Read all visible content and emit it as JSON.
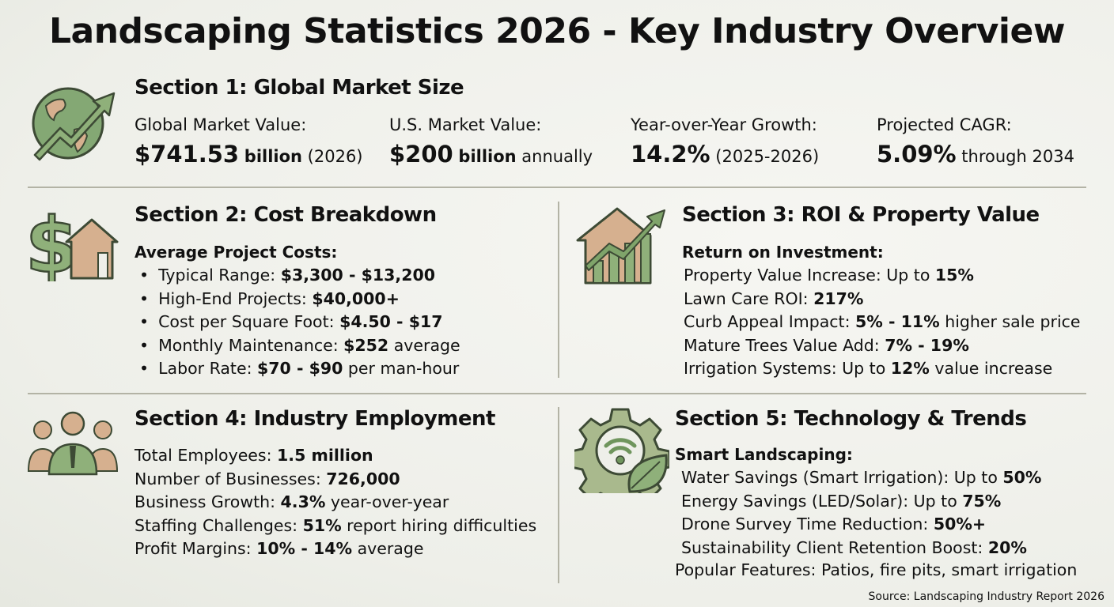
{
  "title": "Landscaping Statistics 2026 - Key Industry Overview",
  "colors": {
    "green": "#7fa46a",
    "tan": "#d6b08f",
    "outline": "#3d4a35",
    "divider": "#b3b3a5"
  },
  "section1": {
    "heading": "Section 1: Global Market Size",
    "icon": "globe-growth-arrow-icon",
    "stats": [
      {
        "label": "Global Market Value:",
        "value": "$741.53",
        "unit": "billion",
        "note": "(2026)"
      },
      {
        "label": "U.S. Market Value:",
        "value": "$200",
        "unit": "billion",
        "note": "annually"
      },
      {
        "label": "Year-over-Year Growth:",
        "value": "14.2%",
        "unit": "",
        "note": "(2025-2026)"
      },
      {
        "label": "Projected CAGR:",
        "value": "5.09%",
        "unit": "",
        "note": "through 2034"
      }
    ]
  },
  "section2": {
    "heading": "Section 2: Cost Breakdown",
    "icon": "dollar-house-icon",
    "subheading": "Average Project Costs:",
    "items": [
      {
        "label": "Typical Range: ",
        "bold": "$3,300 - $13,200",
        "rest": ""
      },
      {
        "label": "High-End Projects: ",
        "bold": "$40,000+",
        "rest": ""
      },
      {
        "label": "Cost per Square Foot: ",
        "bold": "$4.50 - $17",
        "rest": ""
      },
      {
        "label": "Monthly Maintenance: ",
        "bold": "$252",
        "rest": " average"
      },
      {
        "label": "Labor Rate: ",
        "bold": "$70 - $90",
        "rest": " per man-hour"
      }
    ]
  },
  "section3": {
    "heading": "Section 3: ROI & Property Value",
    "icon": "house-bar-chart-icon",
    "subheading": "Return on Investment:",
    "items": [
      {
        "label": "Property Value Increase: Up to ",
        "bold": "15%",
        "rest": ""
      },
      {
        "label": "Lawn Care ROI: ",
        "bold": "217%",
        "rest": ""
      },
      {
        "label": "Curb Appeal Impact: ",
        "bold": "5% - 11%",
        "rest": " higher sale price"
      },
      {
        "label": "Mature Trees Value Add: ",
        "bold": "7% - 19%",
        "rest": ""
      },
      {
        "label": "Irrigation Systems: Up to ",
        "bold": "12%",
        "rest": " value increase"
      }
    ]
  },
  "section4": {
    "heading": "Section 4: Industry Employment",
    "icon": "people-group-icon",
    "items": [
      {
        "label": "Total Employees: ",
        "bold": "1.5 million",
        "rest": ""
      },
      {
        "label": "Number of Businesses: ",
        "bold": "726,000",
        "rest": ""
      },
      {
        "label": "Business Growth: ",
        "bold": "4.3%",
        "rest": " year-over-year"
      },
      {
        "label": "Staffing Challenges: ",
        "bold": "51%",
        "rest": " report hiring difficulties"
      },
      {
        "label": "Profit Margins: ",
        "bold": "10% - 14%",
        "rest": " average"
      }
    ]
  },
  "section5": {
    "heading": "Section 5: Technology & Trends",
    "icon": "gear-wifi-leaf-icon",
    "subheading": "Smart Landscaping:",
    "items": [
      {
        "label": "Water Savings (Smart Irrigation): Up to ",
        "bold": "50%",
        "rest": ""
      },
      {
        "label": "Energy Savings (LED/Solar): Up to ",
        "bold": "75%",
        "rest": ""
      },
      {
        "label": "Drone Survey Time Reduction: ",
        "bold": "50%+",
        "rest": ""
      },
      {
        "label": "Sustainability Client Retention Boost: ",
        "bold": "20%",
        "rest": ""
      }
    ],
    "footer": "Popular Features: Patios, fire pits, smart irrigation"
  },
  "source": "Source: Landscaping Industry Report 2026"
}
